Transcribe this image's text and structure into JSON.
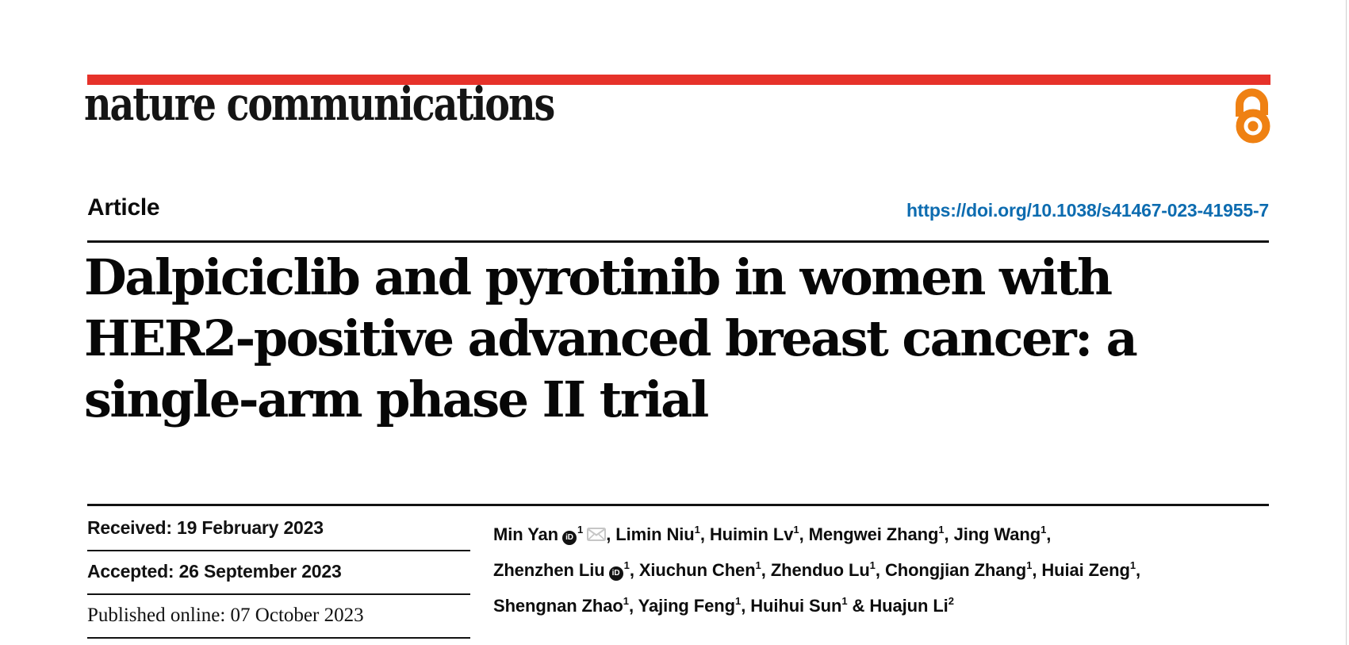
{
  "masthead": {
    "journal": "nature communications",
    "bar_color": "#e6322a",
    "open_access_color": "#ef8113",
    "open_access_icon": "open-access-padlock"
  },
  "article_header": {
    "kicker": "Article",
    "doi": "https://doi.org/10.1038/s41467-023-41955-7",
    "link_color": "#0d6cb0",
    "title_lines": [
      "Dalpiciclib and pyrotinib in women with",
      "HER2-positive advanced breast cancer: a",
      "single-arm phase II trial"
    ]
  },
  "dates": [
    {
      "text": "Received: 19 February 2023"
    },
    {
      "text": "Accepted: 26 September 2023"
    },
    {
      "text": "Published online: 07 October 2023"
    }
  ],
  "authors": {
    "lines": [
      [
        {
          "name": "Min Yan",
          "orcid": true,
          "sup": "1",
          "email": true,
          "after": ", "
        },
        {
          "name": "Limin Niu",
          "sup": "1",
          "after": ", "
        },
        {
          "name": "Huimin Lv",
          "sup": "1",
          "after": ", "
        },
        {
          "name": "Mengwei Zhang",
          "sup": "1",
          "after": ", "
        },
        {
          "name": "Jing Wang",
          "sup": "1",
          "after": ","
        }
      ],
      [
        {
          "name": "Zhenzhen Liu",
          "orcid": true,
          "sup": "1",
          "after": ", "
        },
        {
          "name": "Xiuchun Chen",
          "sup": "1",
          "after": ", "
        },
        {
          "name": "Zhenduo Lu",
          "sup": "1",
          "after": ", "
        },
        {
          "name": "Chongjian Zhang",
          "sup": "1",
          "after": ", "
        },
        {
          "name": "Huiai Zeng",
          "sup": "1",
          "after": ","
        }
      ],
      [
        {
          "name": "Shengnan Zhao",
          "sup": "1",
          "after": ", "
        },
        {
          "name": "Yajing Feng",
          "sup": "1",
          "after": ", "
        },
        {
          "name": "Huihui Sun",
          "sup": "1",
          "after": " & "
        },
        {
          "name": "Huajun Li",
          "sup": "2",
          "after": ""
        }
      ]
    ],
    "orcid_icon_text": "iD"
  }
}
